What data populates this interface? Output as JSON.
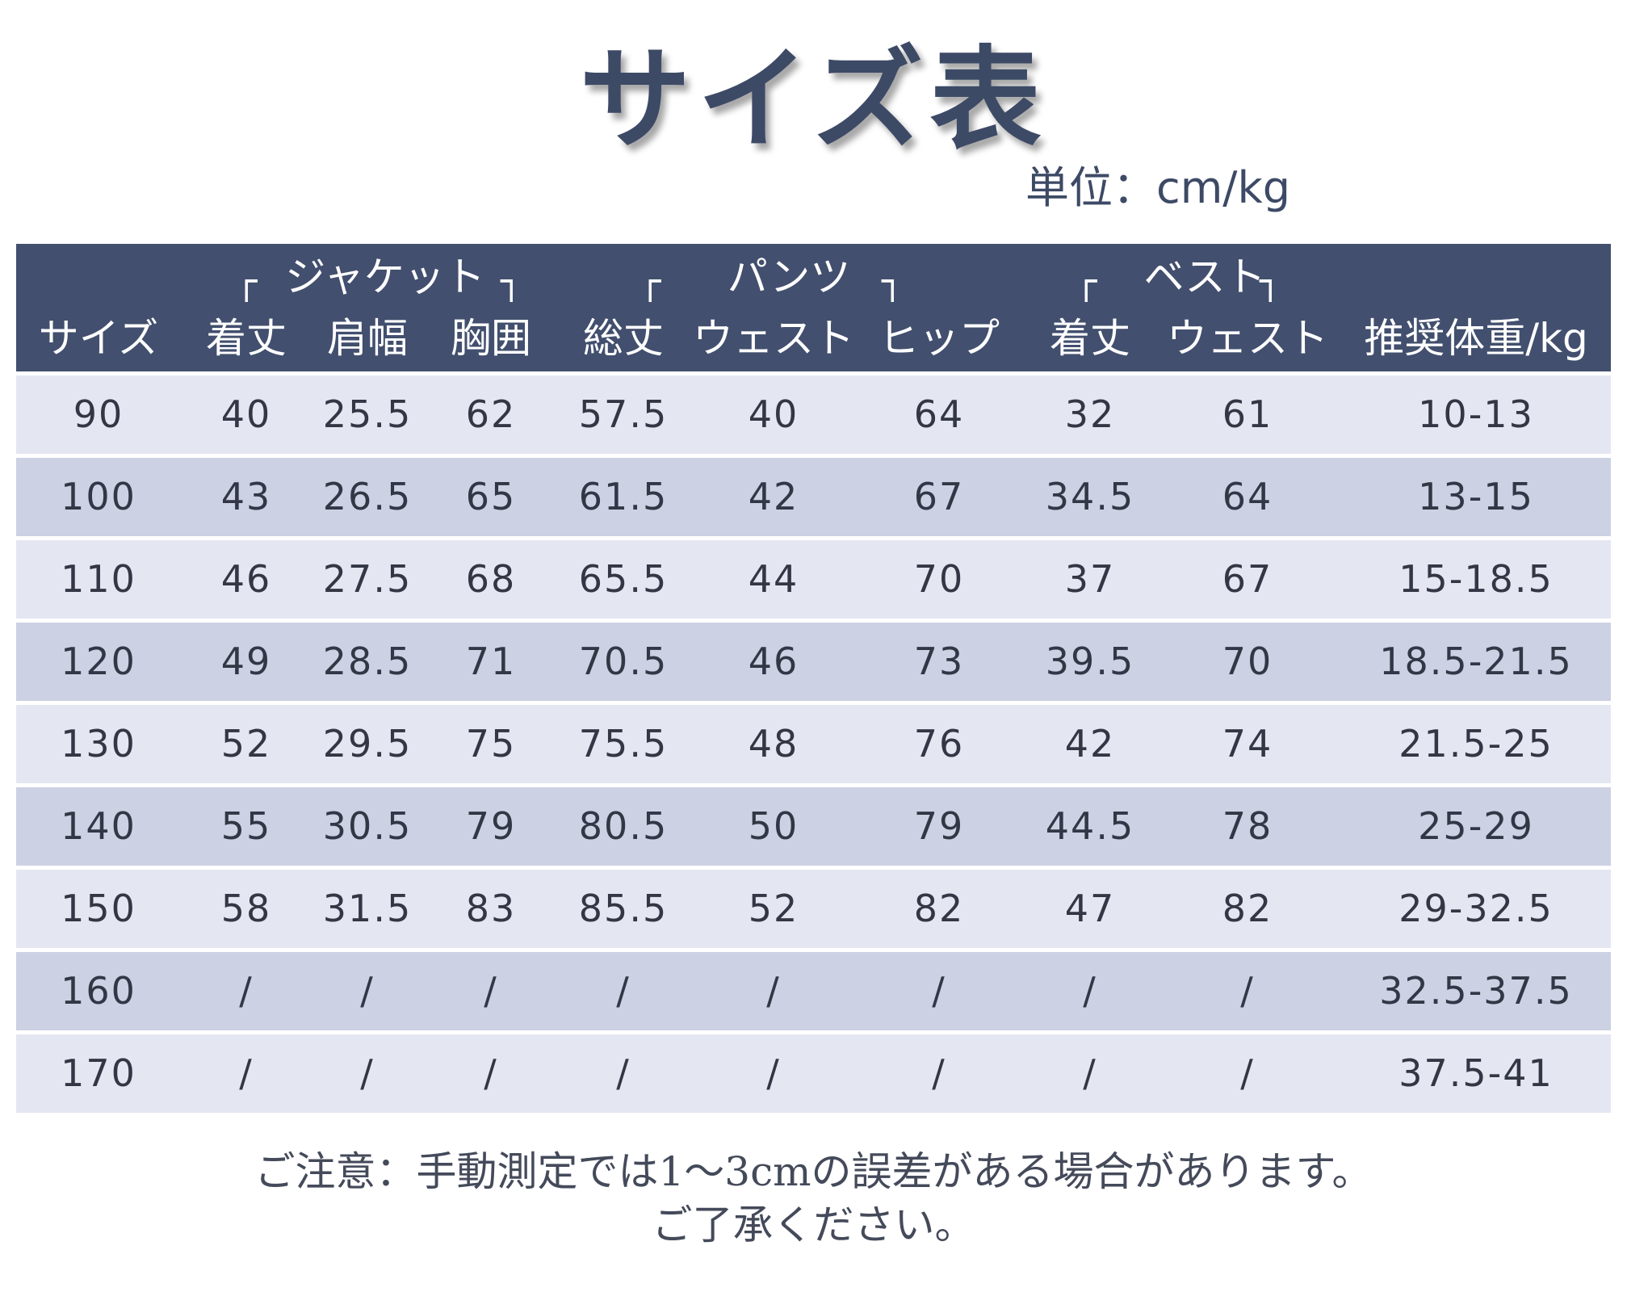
{
  "title": "サイズ表",
  "unit": "単位：cm/kg",
  "groups": {
    "jacket": "ジャケット",
    "pants": "パンツ",
    "vest": "ベスト"
  },
  "brackets": {
    "open": "┌",
    "close": "┐"
  },
  "columns": [
    "サイズ",
    "着丈",
    "肩幅",
    "胸囲",
    "総丈",
    "ウェスト",
    "ヒップ",
    "着丈",
    "ウェスト",
    "推奨体重/kg"
  ],
  "rows": [
    [
      "90",
      "40",
      "25.5",
      "62",
      "57.5",
      "40",
      "64",
      "32",
      "61",
      "10-13"
    ],
    [
      "100",
      "43",
      "26.5",
      "65",
      "61.5",
      "42",
      "67",
      "34.5",
      "64",
      "13-15"
    ],
    [
      "110",
      "46",
      "27.5",
      "68",
      "65.5",
      "44",
      "70",
      "37",
      "67",
      "15-18.5"
    ],
    [
      "120",
      "49",
      "28.5",
      "71",
      "70.5",
      "46",
      "73",
      "39.5",
      "70",
      "18.5-21.5"
    ],
    [
      "130",
      "52",
      "29.5",
      "75",
      "75.5",
      "48",
      "76",
      "42",
      "74",
      "21.5-25"
    ],
    [
      "140",
      "55",
      "30.5",
      "79",
      "80.5",
      "50",
      "79",
      "44.5",
      "78",
      "25-29"
    ],
    [
      "150",
      "58",
      "31.5",
      "83",
      "85.5",
      "52",
      "82",
      "47",
      "82",
      "29-32.5"
    ],
    [
      "160",
      "/",
      "/",
      "/",
      "/",
      "/",
      "/",
      "/",
      "/",
      "32.5-37.5"
    ],
    [
      "170",
      "/",
      "/",
      "/",
      "/",
      "/",
      "/",
      "/",
      "/",
      "37.5-41"
    ]
  ],
  "note": {
    "line1": "ご注意：手動測定では1～3cmの誤差がある場合があります。",
    "line2": "ご了承ください。"
  },
  "colors": {
    "header_bg": "#424f6e",
    "row_light": "#e4e7f1",
    "row_dark": "#ccd1e3",
    "title": "#3d4a66"
  }
}
